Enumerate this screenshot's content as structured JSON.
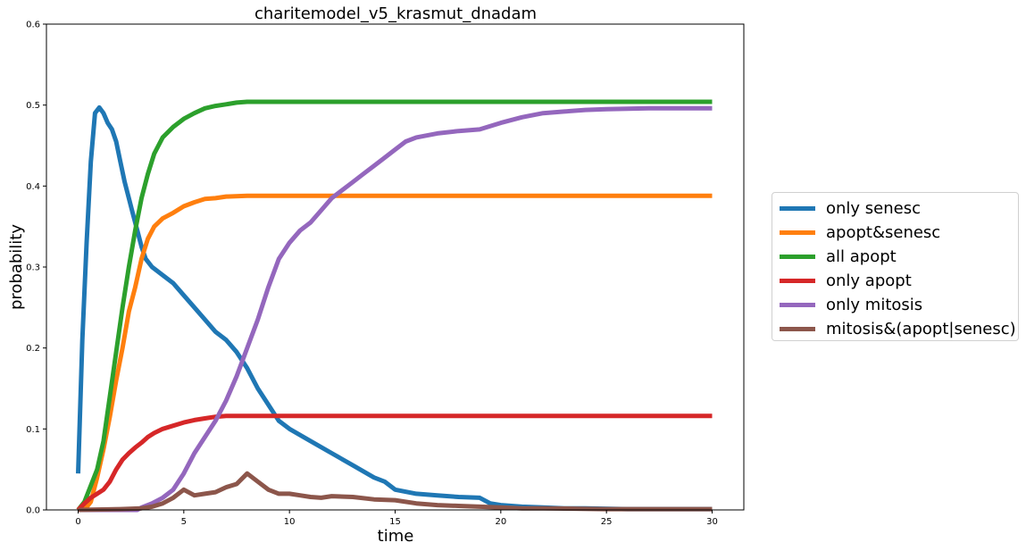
{
  "chart_data": {
    "type": "line",
    "title": "charitemodel_v5_krasmut_dnadam",
    "xlabel": "time",
    "ylabel": "probability",
    "xlim": [
      -1.5,
      31.5
    ],
    "ylim": [
      0,
      0.6
    ],
    "xticks": [
      "0",
      "5",
      "10",
      "15",
      "20",
      "25",
      "30"
    ],
    "yticks": [
      "0.0",
      "0.1",
      "0.2",
      "0.3",
      "0.4",
      "0.5",
      "0.6"
    ],
    "grid": false,
    "legend_position": "right",
    "series": [
      {
        "name": "only senesc",
        "color": "#1f77b4",
        "x": [
          0,
          0.2,
          0.4,
          0.6,
          0.8,
          1.0,
          1.2,
          1.4,
          1.6,
          1.8,
          2.0,
          2.2,
          2.4,
          2.6,
          2.8,
          3.0,
          3.2,
          3.5,
          4.0,
          4.5,
          5.0,
          5.5,
          6.0,
          6.5,
          7.0,
          7.5,
          8.0,
          8.5,
          9.0,
          9.5,
          10.0,
          11.0,
          12.0,
          13.0,
          14.0,
          14.5,
          15.0,
          16.0,
          17.0,
          18.0,
          19.0,
          19.5,
          20.0,
          21.0,
          22.0,
          23.0,
          24.0,
          26.0,
          28.0,
          30.0
        ],
        "y": [
          0.045,
          0.21,
          0.33,
          0.43,
          0.49,
          0.497,
          0.49,
          0.478,
          0.47,
          0.455,
          0.43,
          0.405,
          0.385,
          0.365,
          0.345,
          0.325,
          0.31,
          0.3,
          0.29,
          0.28,
          0.265,
          0.25,
          0.235,
          0.22,
          0.21,
          0.195,
          0.175,
          0.15,
          0.13,
          0.11,
          0.1,
          0.085,
          0.07,
          0.055,
          0.04,
          0.035,
          0.025,
          0.02,
          0.018,
          0.016,
          0.015,
          0.008,
          0.006,
          0.004,
          0.003,
          0.002,
          0.002,
          0.001,
          0.001,
          0.001
        ]
      },
      {
        "name": "apopt&senesc",
        "color": "#ff7f0e",
        "x": [
          0,
          0.3,
          0.6,
          0.9,
          1.2,
          1.5,
          1.8,
          2.1,
          2.4,
          2.7,
          3.0,
          3.3,
          3.6,
          4.0,
          4.5,
          5.0,
          5.5,
          6.0,
          6.5,
          7.0,
          8.0,
          10.0,
          15.0,
          20.0,
          25.0,
          30.0
        ],
        "y": [
          0,
          0,
          0.01,
          0.04,
          0.075,
          0.115,
          0.16,
          0.2,
          0.245,
          0.275,
          0.31,
          0.335,
          0.35,
          0.36,
          0.367,
          0.375,
          0.38,
          0.384,
          0.385,
          0.387,
          0.388,
          0.388,
          0.388,
          0.388,
          0.388,
          0.388
        ]
      },
      {
        "name": "all apopt",
        "color": "#2ca02c",
        "x": [
          0,
          0.3,
          0.6,
          0.9,
          1.2,
          1.5,
          1.8,
          2.1,
          2.4,
          2.7,
          3.0,
          3.3,
          3.6,
          4.0,
          4.5,
          5.0,
          5.5,
          6.0,
          6.5,
          7.0,
          7.5,
          8.0,
          10.0,
          15.0,
          20.0,
          25.0,
          30.0
        ],
        "y": [
          0,
          0.01,
          0.03,
          0.05,
          0.085,
          0.14,
          0.195,
          0.25,
          0.3,
          0.345,
          0.385,
          0.415,
          0.44,
          0.46,
          0.473,
          0.483,
          0.49,
          0.496,
          0.499,
          0.501,
          0.503,
          0.504,
          0.504,
          0.504,
          0.504,
          0.504,
          0.504
        ]
      },
      {
        "name": "only apopt",
        "color": "#d62728",
        "x": [
          0,
          0.3,
          0.6,
          0.9,
          1.2,
          1.5,
          1.8,
          2.1,
          2.4,
          2.7,
          3.0,
          3.3,
          3.6,
          4.0,
          4.5,
          5.0,
          5.5,
          6.0,
          6.5,
          7.0,
          8.0,
          10.0,
          15.0,
          20.0,
          25.0,
          30.0
        ],
        "y": [
          0,
          0.008,
          0.015,
          0.02,
          0.025,
          0.035,
          0.05,
          0.062,
          0.07,
          0.077,
          0.083,
          0.09,
          0.095,
          0.1,
          0.104,
          0.108,
          0.111,
          0.113,
          0.115,
          0.116,
          0.116,
          0.116,
          0.116,
          0.116,
          0.116,
          0.116
        ]
      },
      {
        "name": "only mitosis",
        "color": "#9467bd",
        "x": [
          0,
          1.0,
          2.0,
          2.8,
          3.0,
          3.5,
          4.0,
          4.5,
          5.0,
          5.5,
          6.0,
          6.5,
          7.0,
          7.5,
          8.0,
          8.5,
          9.0,
          9.5,
          10.0,
          10.5,
          11.0,
          11.5,
          12.0,
          12.5,
          13.0,
          13.5,
          14.0,
          14.5,
          15.0,
          15.5,
          16.0,
          17.0,
          18.0,
          19.0,
          20.0,
          21.0,
          22.0,
          23.0,
          24.0,
          25.0,
          27.0,
          30.0
        ],
        "y": [
          0,
          0,
          0,
          0,
          0.003,
          0.008,
          0.015,
          0.025,
          0.045,
          0.07,
          0.09,
          0.11,
          0.135,
          0.165,
          0.2,
          0.235,
          0.275,
          0.31,
          0.33,
          0.345,
          0.355,
          0.37,
          0.385,
          0.395,
          0.405,
          0.415,
          0.425,
          0.435,
          0.445,
          0.455,
          0.46,
          0.465,
          0.468,
          0.47,
          0.478,
          0.485,
          0.49,
          0.492,
          0.494,
          0.495,
          0.496,
          0.496
        ]
      },
      {
        "name": "mitosis&(apopt|senesc)",
        "color": "#8c564b",
        "x": [
          0,
          2.0,
          3.0,
          3.5,
          4.0,
          4.5,
          5.0,
          5.5,
          6.0,
          6.5,
          7.0,
          7.5,
          8.0,
          8.5,
          9.0,
          9.5,
          10.0,
          10.5,
          11.0,
          11.5,
          12.0,
          13.0,
          14.0,
          15.0,
          16.0,
          17.0,
          18.0,
          19.0,
          20.0,
          21.0,
          22.0,
          25.0,
          30.0
        ],
        "y": [
          0,
          0.001,
          0.002,
          0.004,
          0.008,
          0.015,
          0.025,
          0.018,
          0.02,
          0.022,
          0.028,
          0.032,
          0.045,
          0.035,
          0.025,
          0.02,
          0.02,
          0.018,
          0.016,
          0.015,
          0.017,
          0.016,
          0.013,
          0.012,
          0.008,
          0.006,
          0.005,
          0.004,
          0.003,
          0.002,
          0.002,
          0.001,
          0.001
        ]
      }
    ]
  }
}
